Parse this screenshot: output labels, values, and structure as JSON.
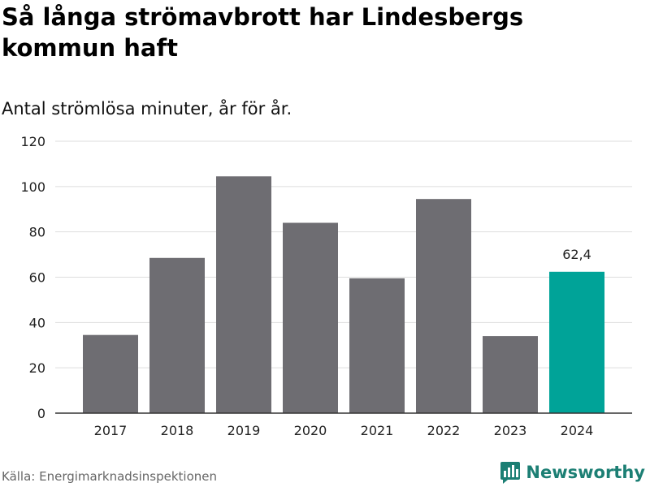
{
  "title": "Så långa strömavbrott har Lindesbergs kommun haft",
  "subtitle": "Antal strömlösa minuter, år för år.",
  "source": "Källa: Energimarknadsinspektionen",
  "brand": {
    "name": "Newsworthy",
    "icon": "newsworthy-logo-icon"
  },
  "colors": {
    "bar": "#6e6d72",
    "highlight": "#00a398",
    "grid": "#dddddd",
    "axis": "#333333",
    "brand": "#1c7f74"
  },
  "chart_data": {
    "type": "bar",
    "title": "Så långa strömavbrott har Lindesbergs kommun haft",
    "subtitle": "Antal strömlösa minuter, år för år.",
    "xlabel": "",
    "ylabel": "",
    "categories": [
      "2017",
      "2018",
      "2019",
      "2020",
      "2021",
      "2022",
      "2023",
      "2024"
    ],
    "values": [
      34.5,
      68.5,
      104.5,
      84,
      59.5,
      94.5,
      34,
      62.4
    ],
    "highlight_index": 7,
    "data_labels": [
      {
        "index": 7,
        "text": "62,4"
      }
    ],
    "ylim": [
      0,
      120
    ],
    "yticks": [
      "0",
      "20",
      "40",
      "60",
      "80",
      "100",
      "120"
    ],
    "ytick_values": [
      0,
      20,
      40,
      60,
      80,
      100,
      120
    ],
    "grid": true
  }
}
